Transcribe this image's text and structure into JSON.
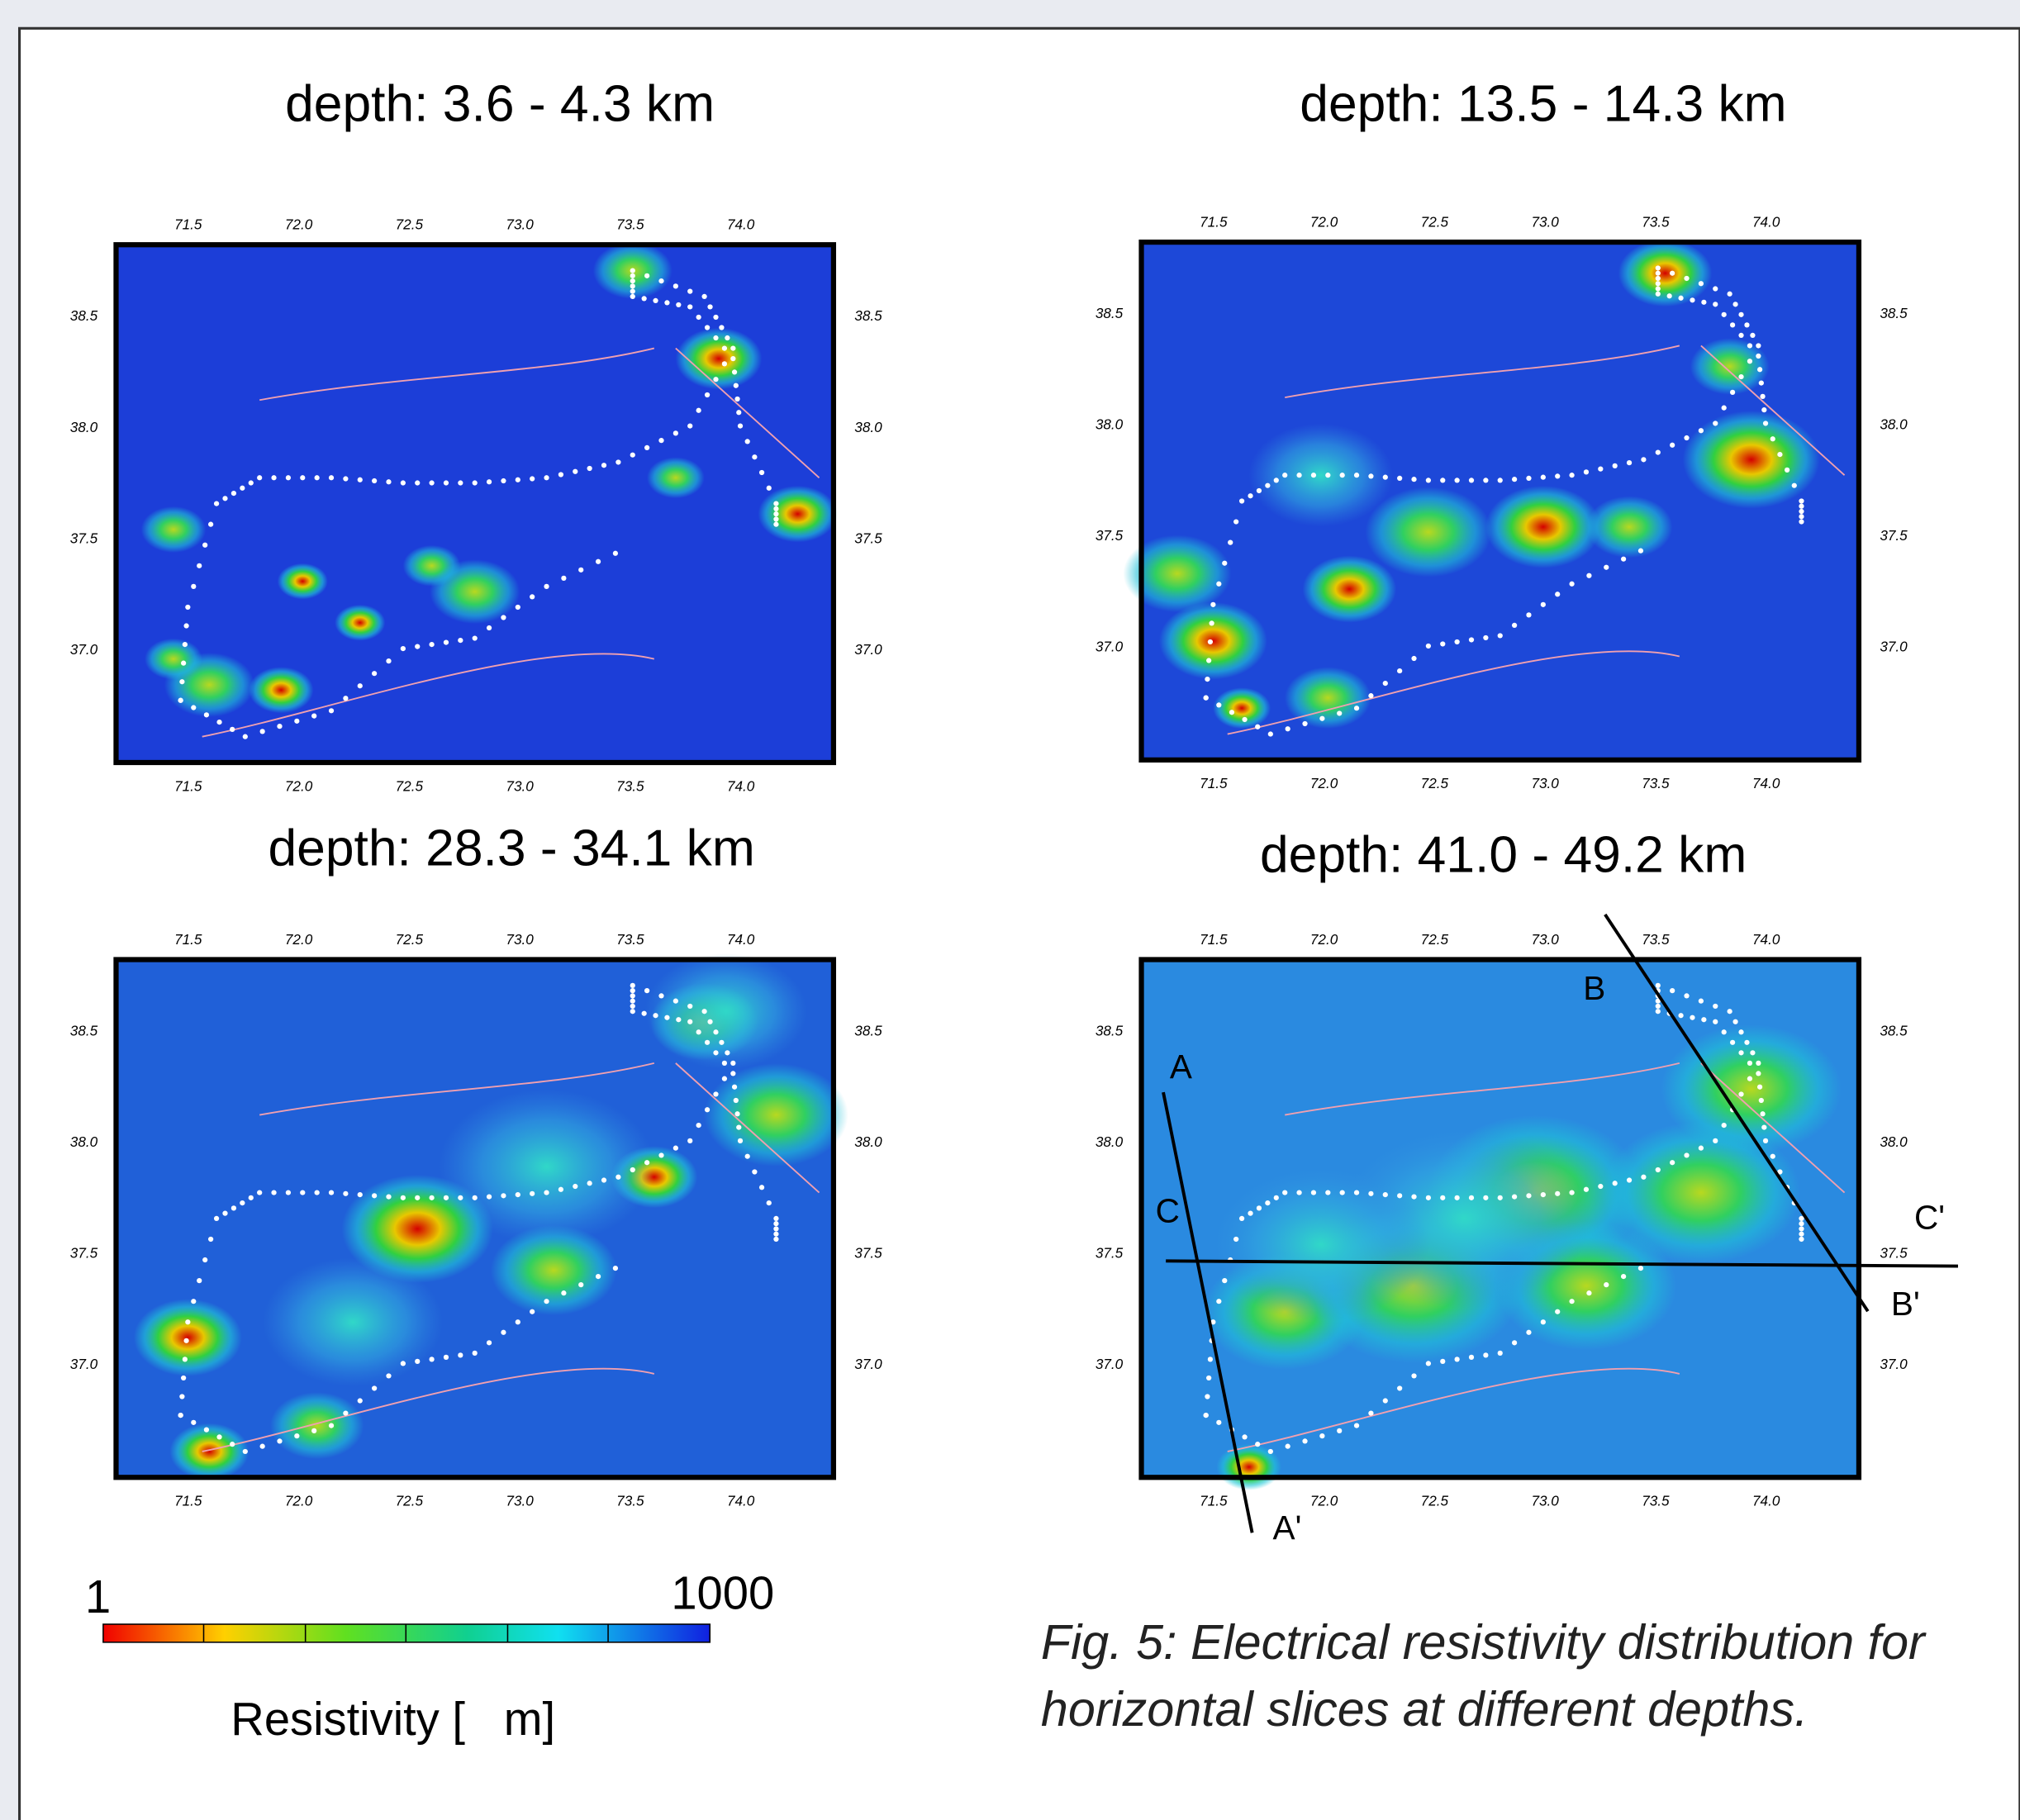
{
  "panels": [
    {
      "title": "depth: 3.6 - 4.3 km"
    },
    {
      "title": "depth: 13.5 - 14.3 km"
    },
    {
      "title": "depth: 28.3 - 34.1 km"
    },
    {
      "title": "depth: 41.0 - 49.2 km"
    }
  ],
  "lon_ticks": [
    "71.5",
    "72.0",
    "72.5",
    "73.0",
    "73.5",
    "74.0"
  ],
  "lat_ticks": [
    "37.0",
    "37.5",
    "38.0",
    "38.5"
  ],
  "profiles": {
    "A": "A",
    "A_end": "A'",
    "B": "B",
    "B_end": "B'",
    "C": "C",
    "C_end": "C'"
  },
  "colorbar": {
    "min_label": "1",
    "max_label": "1000",
    "label": "Resistivity [   m]"
  },
  "caption": [
    "Fig. 5: Electrical resistivity distribution for",
    "horizontal slices at different depths."
  ]
}
